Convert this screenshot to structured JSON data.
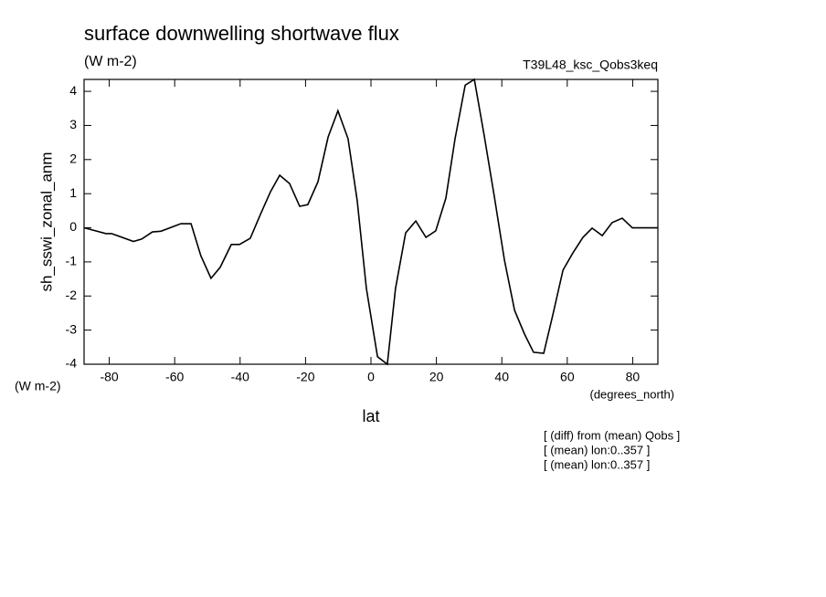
{
  "chart_data": {
    "type": "line",
    "title": "surface downwelling shortwave flux",
    "units": "(W m-2)",
    "dataset": "T39L48_ksc_Qobs3keq",
    "ylabel": "sh_sswi_zonal_anm",
    "yunits": "(W m-2)",
    "xlabel": "lat",
    "xunits": "(degrees_north)",
    "notes": [
      "[ (diff) from (mean) Qobs ]",
      "[ (mean) lon:0..357 ]",
      "[ (mean) lon:0..357 ]"
    ],
    "x": [
      -87.7,
      -81.0,
      -79.3,
      -72.6,
      -70.1,
      -66.8,
      -64.2,
      -58.1,
      -55.0,
      -52.0,
      -48.9,
      -46.1,
      -42.7,
      -40.2,
      -36.9,
      -33.8,
      -30.7,
      -27.9,
      -24.9,
      -21.8,
      -19.3,
      -16.2,
      -13.1,
      -10.1,
      -7.0,
      -4.2,
      -1.4,
      2.0,
      5.0,
      7.5,
      10.6,
      13.7,
      16.8,
      19.8,
      22.9,
      25.7,
      28.8,
      31.6,
      34.6,
      37.7,
      40.8,
      43.9,
      46.9,
      49.7,
      52.8,
      55.6,
      58.7,
      61.7,
      64.8,
      67.6,
      70.7,
      73.7,
      76.8,
      79.9,
      87.7
    ],
    "series": [
      {
        "name": "sh_sswi_zonal_anm",
        "color": "#000000",
        "values": [
          0.0,
          -0.17,
          -0.17,
          -0.4,
          -0.33,
          -0.12,
          -0.1,
          0.12,
          0.12,
          -0.82,
          -1.48,
          -1.16,
          -0.49,
          -0.49,
          -0.31,
          0.39,
          1.06,
          1.54,
          1.3,
          0.63,
          0.68,
          1.35,
          2.66,
          3.43,
          2.61,
          0.79,
          -1.78,
          -3.78,
          -4.0,
          -1.78,
          -0.15,
          0.2,
          -0.28,
          -0.09,
          0.87,
          2.61,
          4.18,
          4.35,
          2.71,
          0.92,
          -0.95,
          -2.42,
          -3.11,
          -3.65,
          -3.68,
          -2.55,
          -1.24,
          -0.74,
          -0.28,
          -0.01,
          -0.23,
          0.15,
          0.28,
          0.0,
          0.0
        ]
      }
    ],
    "xlim": [
      -87.7,
      87.7
    ],
    "ylim": [
      -4,
      4.35
    ],
    "xticks": [
      -80,
      -60,
      -40,
      -20,
      0,
      20,
      40,
      60,
      80
    ],
    "yticks": [
      -4,
      -3,
      -2,
      -1,
      0,
      1,
      2,
      3,
      4
    ]
  }
}
